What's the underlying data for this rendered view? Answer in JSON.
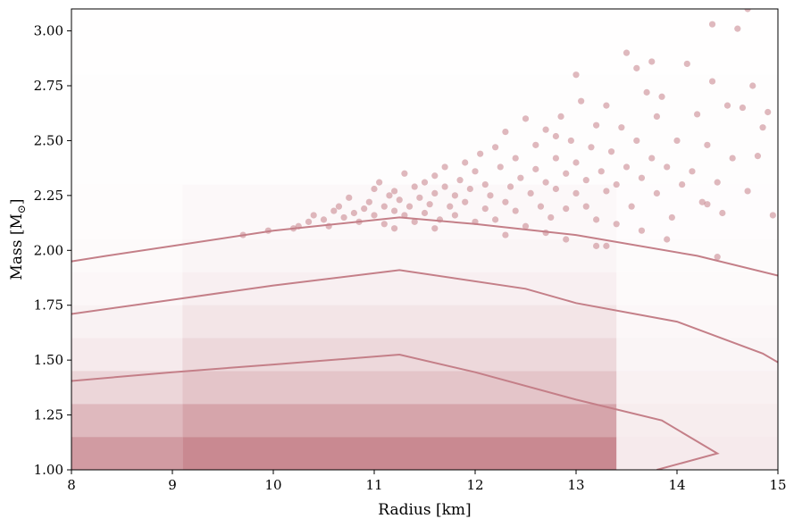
{
  "chart_data": {
    "type": "scatter",
    "xlabel": "Radius [km]",
    "ylabel_main": "Mass [M",
    "ylabel_sub": "⊙",
    "ylabel_close": "]",
    "xlim": [
      8,
      15
    ],
    "ylim": [
      1.0,
      3.1
    ],
    "xticks": [
      8,
      9,
      10,
      11,
      12,
      13,
      14,
      15
    ],
    "xtick_labels": [
      "8",
      "9",
      "10",
      "11",
      "12",
      "13",
      "14",
      "15"
    ],
    "yticks": [
      1.0,
      1.25,
      1.5,
      1.75,
      2.0,
      2.25,
      2.5,
      2.75,
      3.0
    ],
    "ytick_labels": [
      "1.00",
      "1.25",
      "1.50",
      "1.75",
      "2.00",
      "2.25",
      "2.50",
      "2.75",
      "3.00"
    ],
    "grid": false,
    "colors": {
      "accent": "#c47f88",
      "points": "#c47f88",
      "contour": "#c47f88"
    },
    "heatmap_bands": [
      {
        "x0": 8.0,
        "x1": 9.1,
        "y0": 1.0,
        "y1": 1.15,
        "alpha": 0.78
      },
      {
        "x0": 9.1,
        "x1": 13.4,
        "y0": 1.0,
        "y1": 1.15,
        "alpha": 0.92
      },
      {
        "x0": 13.4,
        "x1": 15.0,
        "y0": 1.0,
        "y1": 1.15,
        "alpha": 0.16
      },
      {
        "x0": 8.0,
        "x1": 9.1,
        "y0": 1.15,
        "y1": 1.3,
        "alpha": 0.55
      },
      {
        "x0": 9.1,
        "x1": 13.4,
        "y0": 1.15,
        "y1": 1.3,
        "alpha": 0.7
      },
      {
        "x0": 13.4,
        "x1": 15.0,
        "y0": 1.15,
        "y1": 1.3,
        "alpha": 0.14
      },
      {
        "x0": 8.0,
        "x1": 9.1,
        "y0": 1.3,
        "y1": 1.45,
        "alpha": 0.32
      },
      {
        "x0": 9.1,
        "x1": 13.4,
        "y0": 1.3,
        "y1": 1.45,
        "alpha": 0.45
      },
      {
        "x0": 13.4,
        "x1": 15.0,
        "y0": 1.3,
        "y1": 1.45,
        "alpha": 0.11
      },
      {
        "x0": 8.0,
        "x1": 9.1,
        "y0": 1.45,
        "y1": 1.6,
        "alpha": 0.16
      },
      {
        "x0": 9.1,
        "x1": 13.4,
        "y0": 1.45,
        "y1": 1.6,
        "alpha": 0.3
      },
      {
        "x0": 13.4,
        "x1": 15.0,
        "y0": 1.45,
        "y1": 1.6,
        "alpha": 0.08
      },
      {
        "x0": 8.0,
        "x1": 9.1,
        "y0": 1.6,
        "y1": 1.75,
        "alpha": 0.1
      },
      {
        "x0": 9.1,
        "x1": 13.4,
        "y0": 1.6,
        "y1": 1.75,
        "alpha": 0.2
      },
      {
        "x0": 13.4,
        "x1": 15.0,
        "y0": 1.6,
        "y1": 1.75,
        "alpha": 0.06
      },
      {
        "x0": 8.0,
        "x1": 9.1,
        "y0": 1.75,
        "y1": 1.9,
        "alpha": 0.06
      },
      {
        "x0": 9.1,
        "x1": 13.4,
        "y0": 1.75,
        "y1": 1.9,
        "alpha": 0.12
      },
      {
        "x0": 13.4,
        "x1": 15.0,
        "y0": 1.75,
        "y1": 1.9,
        "alpha": 0.04
      },
      {
        "x0": 8.0,
        "x1": 9.1,
        "y0": 1.9,
        "y1": 2.05,
        "alpha": 0.04
      },
      {
        "x0": 9.1,
        "x1": 13.4,
        "y0": 1.9,
        "y1": 2.05,
        "alpha": 0.08
      },
      {
        "x0": 13.4,
        "x1": 15.0,
        "y0": 1.9,
        "y1": 2.05,
        "alpha": 0.03
      },
      {
        "x0": 8.0,
        "x1": 9.1,
        "y0": 2.05,
        "y1": 2.3,
        "alpha": 0.025
      },
      {
        "x0": 9.1,
        "x1": 13.4,
        "y0": 2.05,
        "y1": 2.3,
        "alpha": 0.05
      },
      {
        "x0": 13.4,
        "x1": 15.0,
        "y0": 2.05,
        "y1": 2.3,
        "alpha": 0.02
      },
      {
        "x0": 8.0,
        "x1": 15.0,
        "y0": 2.3,
        "y1": 2.8,
        "alpha": 0.015
      },
      {
        "x0": 8.0,
        "x1": 15.0,
        "y0": 2.8,
        "y1": 3.1,
        "alpha": 0.008
      }
    ],
    "contours": [
      [
        [
          8.0,
          1.95
        ],
        [
          8.35,
          1.975
        ],
        [
          9.0,
          2.02
        ],
        [
          10.0,
          2.09
        ],
        [
          11.25,
          2.15
        ],
        [
          12.0,
          2.12
        ],
        [
          13.0,
          2.07
        ],
        [
          14.2,
          1.975
        ],
        [
          15.0,
          1.885
        ]
      ],
      [
        [
          8.0,
          1.71
        ],
        [
          9.0,
          1.775
        ],
        [
          10.0,
          1.84
        ],
        [
          11.25,
          1.91
        ],
        [
          12.5,
          1.825
        ],
        [
          13.0,
          1.76
        ],
        [
          14.0,
          1.675
        ],
        [
          14.85,
          1.53
        ],
        [
          15.0,
          1.49
        ]
      ],
      [
        [
          8.0,
          1.405
        ],
        [
          9.0,
          1.445
        ],
        [
          10.0,
          1.48
        ],
        [
          11.25,
          1.525
        ],
        [
          12.0,
          1.445
        ],
        [
          13.0,
          1.32
        ],
        [
          13.85,
          1.225
        ],
        [
          14.4,
          1.075
        ],
        [
          13.8,
          1.0
        ]
      ]
    ],
    "points": [
      [
        9.7,
        2.07
      ],
      [
        9.95,
        2.09
      ],
      [
        10.2,
        2.1
      ],
      [
        10.25,
        2.11
      ],
      [
        10.35,
        2.13
      ],
      [
        10.4,
        2.16
      ],
      [
        10.5,
        2.14
      ],
      [
        10.55,
        2.11
      ],
      [
        10.6,
        2.18
      ],
      [
        10.65,
        2.2
      ],
      [
        10.7,
        2.15
      ],
      [
        10.75,
        2.24
      ],
      [
        10.8,
        2.17
      ],
      [
        10.85,
        2.13
      ],
      [
        10.9,
        2.19
      ],
      [
        10.95,
        2.22
      ],
      [
        11.0,
        2.16
      ],
      [
        11.0,
        2.28
      ],
      [
        11.05,
        2.31
      ],
      [
        11.1,
        2.2
      ],
      [
        11.1,
        2.12
      ],
      [
        11.15,
        2.25
      ],
      [
        11.2,
        2.18
      ],
      [
        11.2,
        2.27
      ],
      [
        11.25,
        2.23
      ],
      [
        11.3,
        2.16
      ],
      [
        11.3,
        2.35
      ],
      [
        11.35,
        2.2
      ],
      [
        11.4,
        2.29
      ],
      [
        11.4,
        2.13
      ],
      [
        11.45,
        2.24
      ],
      [
        11.5,
        2.31
      ],
      [
        11.5,
        2.17
      ],
      [
        11.55,
        2.21
      ],
      [
        11.6,
        2.34
      ],
      [
        11.6,
        2.26
      ],
      [
        11.65,
        2.14
      ],
      [
        11.7,
        2.29
      ],
      [
        11.7,
        2.38
      ],
      [
        11.75,
        2.2
      ],
      [
        11.8,
        2.25
      ],
      [
        11.8,
        2.16
      ],
      [
        11.85,
        2.32
      ],
      [
        11.9,
        2.4
      ],
      [
        11.9,
        2.22
      ],
      [
        11.95,
        2.28
      ],
      [
        12.0,
        2.13
      ],
      [
        12.0,
        2.36
      ],
      [
        12.05,
        2.44
      ],
      [
        12.1,
        2.19
      ],
      [
        12.1,
        2.3
      ],
      [
        12.15,
        2.25
      ],
      [
        12.2,
        2.47
      ],
      [
        12.2,
        2.14
      ],
      [
        12.25,
        2.38
      ],
      [
        12.3,
        2.22
      ],
      [
        12.3,
        2.54
      ],
      [
        12.35,
        2.29
      ],
      [
        12.4,
        2.18
      ],
      [
        12.4,
        2.42
      ],
      [
        12.45,
        2.33
      ],
      [
        12.5,
        2.11
      ],
      [
        12.5,
        2.6
      ],
      [
        12.55,
        2.26
      ],
      [
        12.6,
        2.37
      ],
      [
        12.6,
        2.48
      ],
      [
        12.65,
        2.2
      ],
      [
        12.7,
        2.31
      ],
      [
        12.7,
        2.55
      ],
      [
        12.75,
        2.15
      ],
      [
        12.8,
        2.42
      ],
      [
        12.8,
        2.28
      ],
      [
        12.85,
        2.61
      ],
      [
        12.9,
        2.35
      ],
      [
        12.9,
        2.19
      ],
      [
        12.95,
        2.5
      ],
      [
        13.0,
        2.26
      ],
      [
        13.0,
        2.4
      ],
      [
        13.05,
        2.68
      ],
      [
        13.1,
        2.2
      ],
      [
        13.1,
        2.32
      ],
      [
        13.15,
        2.47
      ],
      [
        13.2,
        2.57
      ],
      [
        13.2,
        2.14
      ],
      [
        13.25,
        2.36
      ],
      [
        13.3,
        2.27
      ],
      [
        13.3,
        2.66
      ],
      [
        13.35,
        2.45
      ],
      [
        13.4,
        2.3
      ],
      [
        13.4,
        2.12
      ],
      [
        13.45,
        2.56
      ],
      [
        13.5,
        2.38
      ],
      [
        13.5,
        2.9
      ],
      [
        13.55,
        2.2
      ],
      [
        13.6,
        2.83
      ],
      [
        13.6,
        2.5
      ],
      [
        13.65,
        2.33
      ],
      [
        13.7,
        2.72
      ],
      [
        13.75,
        2.42
      ],
      [
        13.8,
        2.26
      ],
      [
        13.8,
        2.61
      ],
      [
        13.85,
        2.7
      ],
      [
        13.9,
        2.38
      ],
      [
        13.95,
        2.15
      ],
      [
        14.0,
        2.5
      ],
      [
        14.05,
        2.3
      ],
      [
        14.1,
        2.85
      ],
      [
        14.15,
        2.36
      ],
      [
        14.2,
        2.62
      ],
      [
        14.25,
        2.22
      ],
      [
        14.3,
        2.48
      ],
      [
        14.35,
        3.03
      ],
      [
        14.35,
        2.77
      ],
      [
        14.4,
        2.31
      ],
      [
        14.45,
        2.17
      ],
      [
        14.5,
        2.66
      ],
      [
        14.55,
        2.42
      ],
      [
        14.6,
        3.01
      ],
      [
        14.65,
        2.65
      ],
      [
        14.7,
        2.27
      ],
      [
        14.75,
        2.75
      ],
      [
        14.8,
        2.43
      ],
      [
        14.85,
        2.56
      ],
      [
        14.9,
        2.63
      ],
      [
        14.95,
        2.16
      ],
      [
        14.4,
        1.97
      ],
      [
        14.3,
        2.21
      ],
      [
        13.9,
        2.05
      ],
      [
        13.65,
        2.09
      ],
      [
        13.2,
        2.02
      ],
      [
        12.9,
        2.05
      ],
      [
        12.7,
        2.08
      ],
      [
        11.6,
        2.1
      ],
      [
        12.3,
        2.07
      ],
      [
        11.2,
        2.1
      ],
      [
        13.75,
        2.86
      ],
      [
        14.7,
        3.1
      ],
      [
        13.0,
        2.8
      ],
      [
        12.8,
        2.52
      ],
      [
        13.3,
        2.02
      ]
    ]
  }
}
